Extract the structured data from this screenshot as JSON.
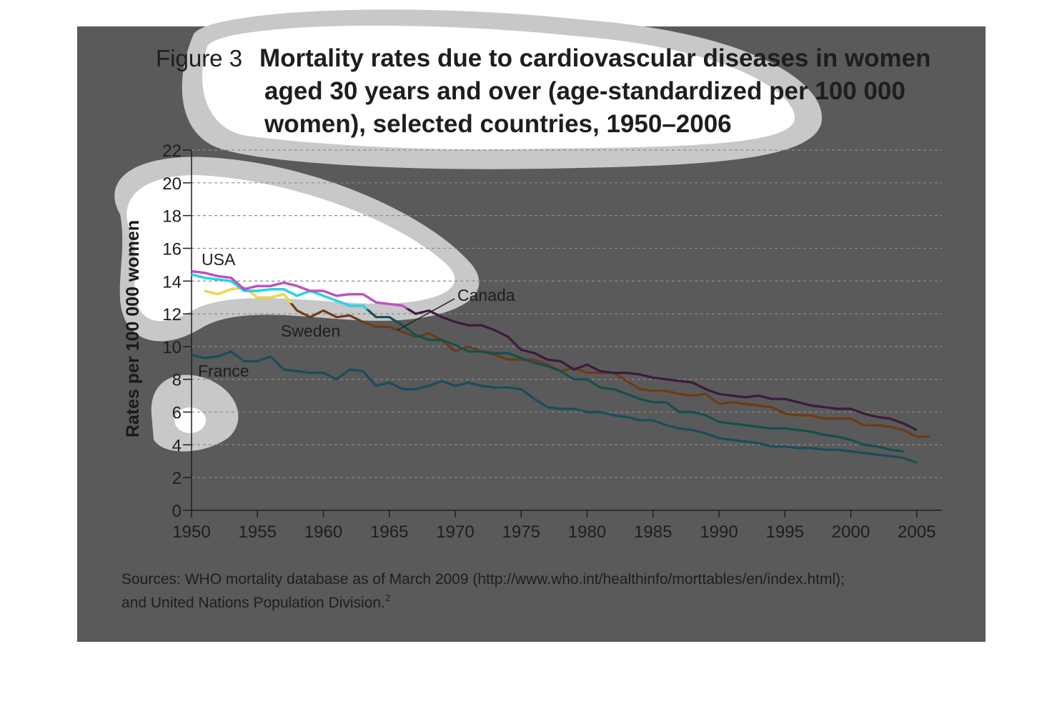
{
  "chart_data": {
    "type": "line",
    "figure_label": "Figure 3",
    "title_lines": [
      "Mortality rates due to cardiovascular diseases in women",
      "aged 30 years and over (age-standardized per 100 000",
      "women), selected countries, 1950–2006"
    ],
    "ylabel": "Rates per 100 000 women",
    "xlabel": "",
    "xlim": [
      1950,
      2007
    ],
    "ylim": [
      0,
      22
    ],
    "x_ticks": [
      1950,
      1955,
      1960,
      1965,
      1970,
      1975,
      1980,
      1985,
      1990,
      1995,
      2000,
      2005
    ],
    "y_ticks": [
      0,
      2,
      4,
      6,
      8,
      10,
      12,
      14,
      16,
      18,
      20,
      22
    ],
    "grid": "horizontal-dashed",
    "series": [
      {
        "name": "USA",
        "color": "#3d1a3d",
        "highlight_color": "#c050c8",
        "x": [
          1950,
          1951,
          1952,
          1953,
          1954,
          1955,
          1956,
          1957,
          1958,
          1959,
          1960,
          1961,
          1962,
          1963,
          1964,
          1965,
          1966,
          1967,
          1968,
          1969,
          1970,
          1971,
          1972,
          1973,
          1974,
          1975,
          1976,
          1977,
          1978,
          1979,
          1980,
          1981,
          1982,
          1983,
          1984,
          1985,
          1986,
          1987,
          1988,
          1989,
          1990,
          1991,
          1992,
          1993,
          1994,
          1995,
          1996,
          1997,
          1998,
          1999,
          2000,
          2001,
          2002,
          2003,
          2004,
          2005
        ],
        "y": [
          14.6,
          14.5,
          14.3,
          14.2,
          13.5,
          13.7,
          13.7,
          13.9,
          13.7,
          13.4,
          13.4,
          13.1,
          13.2,
          13.2,
          12.7,
          12.6,
          12.5,
          12.0,
          12.2,
          11.8,
          11.5,
          11.3,
          11.3,
          11.0,
          10.6,
          9.8,
          9.6,
          9.2,
          9.1,
          8.6,
          8.9,
          8.5,
          8.4,
          8.4,
          8.3,
          8.1,
          8.0,
          7.9,
          7.8,
          7.4,
          7.1,
          7.0,
          6.9,
          7.0,
          6.8,
          6.8,
          6.6,
          6.4,
          6.3,
          6.2,
          6.2,
          5.9,
          5.7,
          5.6,
          5.3,
          4.9
        ]
      },
      {
        "name": "Canada",
        "color": "#14504c",
        "highlight_color": "#20d8e8",
        "x": [
          1950,
          1951,
          1952,
          1953,
          1954,
          1955,
          1956,
          1957,
          1958,
          1959,
          1960,
          1961,
          1962,
          1963,
          1964,
          1965,
          1966,
          1967,
          1968,
          1969,
          1970,
          1971,
          1972,
          1973,
          1974,
          1975,
          1976,
          1977,
          1978,
          1979,
          1980,
          1981,
          1982,
          1983,
          1984,
          1985,
          1986,
          1987,
          1988,
          1989,
          1990,
          1991,
          1992,
          1993,
          1994,
          1995,
          1996,
          1997,
          1998,
          1999,
          2000,
          2001,
          2002,
          2003,
          2004
        ],
        "y": [
          14.4,
          14.2,
          14.1,
          14.0,
          13.4,
          13.4,
          13.5,
          13.5,
          13.1,
          13.4,
          13.1,
          12.8,
          12.5,
          12.5,
          11.8,
          11.8,
          11.3,
          10.7,
          10.4,
          10.4,
          10.1,
          9.7,
          9.7,
          9.6,
          9.6,
          9.3,
          9.0,
          8.8,
          8.5,
          8.0,
          8.0,
          7.5,
          7.4,
          7.1,
          6.8,
          6.6,
          6.6,
          6.0,
          6.0,
          5.8,
          5.4,
          5.3,
          5.2,
          5.1,
          5.0,
          5.0,
          4.9,
          4.8,
          4.6,
          4.5,
          4.3,
          4.0,
          3.9,
          3.7,
          3.6
        ]
      },
      {
        "name": "Sweden",
        "color": "#6a3c18",
        "highlight_color": "#f0dc40",
        "x": [
          1951,
          1952,
          1953,
          1954,
          1955,
          1956,
          1957,
          1958,
          1959,
          1960,
          1961,
          1962,
          1963,
          1964,
          1965,
          1966,
          1967,
          1968,
          1969,
          1970,
          1971,
          1972,
          1973,
          1974,
          1975,
          1976,
          1977,
          1978,
          1979,
          1980,
          1981,
          1982,
          1983,
          1984,
          1985,
          1986,
          1987,
          1988,
          1989,
          1990,
          1991,
          1992,
          1993,
          1994,
          1995,
          1996,
          1997,
          1998,
          1999,
          2000,
          2001,
          2002,
          2003,
          2004,
          2005,
          2006
        ],
        "y": [
          13.4,
          13.2,
          13.5,
          13.6,
          13.0,
          13.0,
          13.2,
          12.2,
          11.8,
          12.2,
          11.8,
          11.9,
          11.5,
          11.2,
          11.2,
          10.9,
          10.6,
          10.8,
          10.4,
          9.7,
          10.0,
          9.7,
          9.5,
          9.2,
          9.2,
          9.2,
          8.9,
          8.5,
          8.7,
          8.4,
          8.4,
          8.4,
          7.9,
          7.4,
          7.3,
          7.3,
          7.1,
          7.0,
          7.1,
          6.5,
          6.6,
          6.5,
          6.4,
          6.3,
          5.9,
          5.8,
          5.8,
          5.6,
          5.6,
          5.6,
          5.2,
          5.2,
          5.1,
          4.9,
          4.5,
          4.5
        ]
      },
      {
        "name": "France",
        "color": "#1c4c5c",
        "highlight_color": "#1c4c5c",
        "x": [
          1950,
          1951,
          1952,
          1953,
          1954,
          1955,
          1956,
          1957,
          1958,
          1959,
          1960,
          1961,
          1962,
          1963,
          1964,
          1965,
          1966,
          1967,
          1968,
          1969,
          1970,
          1971,
          1972,
          1973,
          1974,
          1975,
          1976,
          1977,
          1978,
          1979,
          1980,
          1981,
          1982,
          1983,
          1984,
          1985,
          1986,
          1987,
          1988,
          1989,
          1990,
          1991,
          1992,
          1993,
          1994,
          1995,
          1996,
          1997,
          1998,
          1999,
          2000,
          2001,
          2002,
          2003,
          2004,
          2005
        ],
        "y": [
          9.5,
          9.3,
          9.4,
          9.7,
          9.1,
          9.1,
          9.4,
          8.6,
          8.5,
          8.4,
          8.4,
          8.0,
          8.6,
          8.5,
          7.6,
          7.8,
          7.4,
          7.4,
          7.6,
          7.9,
          7.6,
          7.8,
          7.6,
          7.5,
          7.5,
          7.4,
          6.8,
          6.3,
          6.2,
          6.2,
          6.0,
          6.0,
          5.8,
          5.7,
          5.5,
          5.5,
          5.2,
          5.0,
          4.9,
          4.7,
          4.4,
          4.3,
          4.2,
          4.1,
          3.9,
          3.9,
          3.8,
          3.8,
          3.7,
          3.7,
          3.6,
          3.5,
          3.4,
          3.3,
          3.2,
          2.9
        ]
      }
    ],
    "source_lines": [
      "Sources: WHO mortality database as of March 2009 (http://www.who.int/healthinfo/morttables/en/index.html);",
      "and United Nations Population Division."
    ],
    "source_footnote": "2"
  }
}
